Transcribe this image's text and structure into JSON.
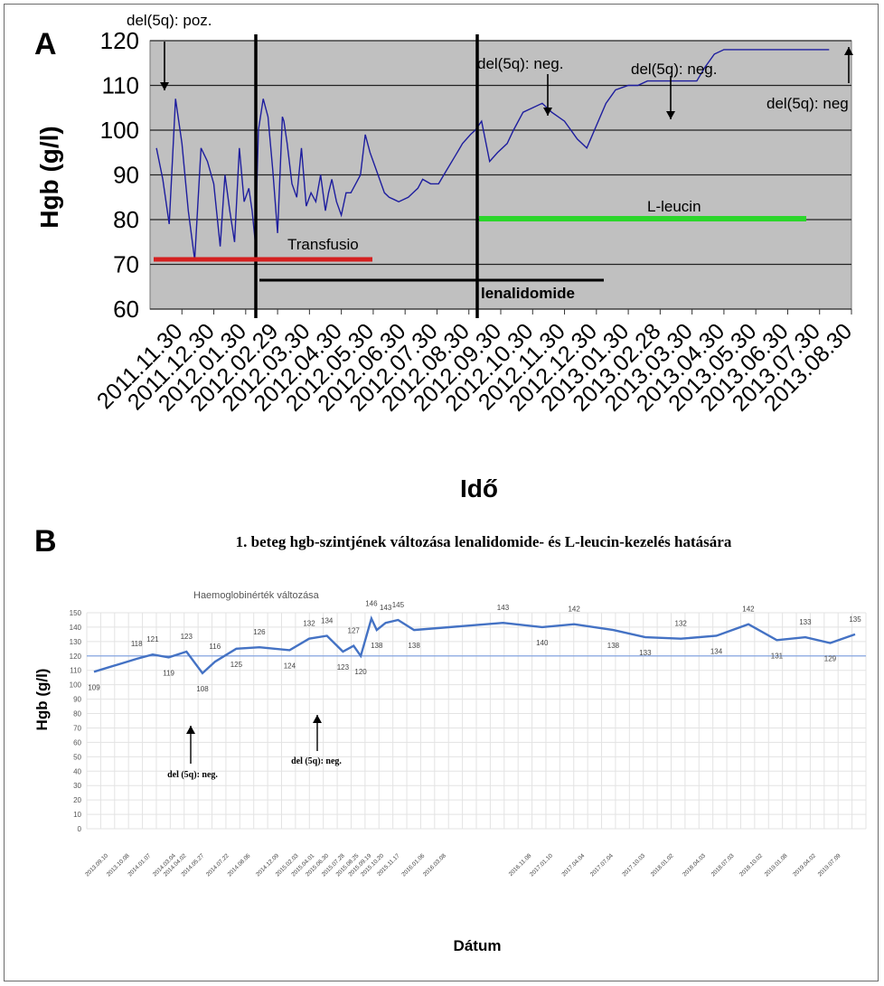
{
  "panels": {
    "a_letter": "A",
    "b_letter": "B"
  },
  "chart_data": [
    {
      "type": "line",
      "ylabel": "Hgb (g/l)",
      "xlabel": "Idő",
      "ylim": [
        60,
        120
      ],
      "yticks": [
        "60",
        "70",
        "80",
        "90",
        "100",
        "110",
        "120"
      ],
      "categories": [
        "2011.11.30",
        "2011.12.30",
        "2012.01.30",
        "2012.02.29",
        "2012.03.30",
        "2012.04.30",
        "2012.05.30",
        "2012.06.30",
        "2012.07.30",
        "2012.08.30",
        "2012.09.30",
        "2012.10.30",
        "2012.11.30",
        "2012.12.30",
        "2013.01.30",
        "2013.02.28",
        "2013.03.30",
        "2013.04.30",
        "2013.05.30",
        "2013.06.30",
        "2013.07.30",
        "2013.08.30"
      ],
      "background": "#c0c0c0",
      "grid": true,
      "series": [
        {
          "color": "#1d1d9e",
          "x": [
            0,
            0.2,
            0.4,
            0.6,
            0.8,
            1.0,
            1.2,
            1.4,
            1.6,
            1.8,
            2.0,
            2.15,
            2.3,
            2.45,
            2.6,
            2.75,
            2.9,
            3.0,
            3.1,
            3.2,
            3.35,
            3.5,
            3.65,
            3.8,
            3.95,
            4.0,
            4.1,
            4.25,
            4.4,
            4.55,
            4.7,
            4.85,
            5.0,
            5.15,
            5.3,
            5.4,
            5.5,
            5.65,
            5.8,
            5.95,
            6.1,
            6.25,
            6.4,
            6.55,
            6.7,
            6.85,
            7.0,
            7.15,
            7.3,
            7.45,
            7.6,
            7.75,
            7.9,
            8.05,
            8.2,
            8.35,
            8.6,
            8.85,
            9.1,
            9.35,
            9.6,
            9.85,
            10.0,
            10.2,
            10.45,
            10.7,
            11.0,
            11.2,
            11.5,
            11.8,
            12.1,
            12.4,
            12.8,
            13.0,
            13.2,
            13.5,
            13.8,
            14.1,
            14.4,
            14.8,
            15.1,
            15.4,
            15.7,
            16.0,
            16.35,
            16.7,
            16.95,
            17.2,
            17.5,
            17.8,
            18.1,
            18.4,
            18.7,
            19.0,
            19.3,
            19.6,
            19.9,
            20.2,
            20.5,
            20.8,
            21.1
          ],
          "values": [
            96,
            89,
            79,
            107,
            97,
            82,
            71,
            96,
            93,
            88,
            74,
            90,
            82,
            75,
            96,
            84,
            87,
            82,
            75,
            100,
            107,
            103,
            91,
            77,
            103,
            102,
            97,
            88,
            85,
            96,
            83,
            86,
            84,
            90,
            82,
            86,
            89,
            84,
            81,
            86,
            86,
            88,
            90,
            99,
            95,
            92,
            89,
            86,
            85,
            84.5,
            84,
            84.5,
            85,
            86,
            87,
            89,
            88,
            88,
            91,
            94,
            97,
            99,
            100,
            102,
            93,
            95,
            97,
            100,
            104,
            105,
            106,
            104,
            102,
            100,
            98,
            96,
            101,
            106,
            109,
            110,
            110,
            111,
            111,
            111,
            111,
            111,
            111,
            114,
            117,
            118,
            118,
            118,
            118,
            118,
            118,
            118,
            118,
            118,
            118,
            118,
            118
          ]
        }
      ],
      "annotations": {
        "del5q_poz": "del(5q): poz.",
        "del5q_neg_1": "del(5q): neg.",
        "del5q_neg_2": "del(5q): neg.",
        "del5q_neg_3": "del(5q): neg",
        "transfusio": "Transfusio",
        "l_leucin": "L-leucin",
        "lenalidomide": "lenalidomide"
      }
    },
    {
      "type": "line",
      "title": "1. beteg hgb-szintjének változása lenalidomide- és L-leucin-kezelés hatására",
      "series_label": "Haemoglobinérték változása",
      "ylabel": "Hgb (g/l)",
      "xlabel": "Dátum",
      "ylim": [
        0,
        150
      ],
      "yticks": [
        "0",
        "10",
        "20",
        "30",
        "40",
        "50",
        "60",
        "70",
        "80",
        "90",
        "100",
        "110",
        "120",
        "130",
        "140",
        "150"
      ],
      "reference_line": 120,
      "grid": true,
      "categories": [
        "2013.09.10",
        "2013.10.08",
        "2014.01.07",
        "2014.03.04",
        "2014.04.02",
        "2014.05.27",
        "2014.07.22",
        "2014.08.06",
        "2014.12.09",
        "2015.02.03",
        "2015.04.01",
        "2015.06.30",
        "2015.07.28",
        "2015.08.25",
        "2015.09.19",
        "2015.10.20",
        "2015.11.17",
        "2016.01.06",
        "2016.03.08",
        "2016.11.08",
        "2017.01.10",
        "2017.04.04",
        "2017.07.04",
        "2017.10.03",
        "2018.01.02",
        "2018.04.03",
        "2018.07.03",
        "2018.10.02",
        "2019.01.08",
        "2019.04.02",
        "2019.07.09"
      ],
      "x": [
        0,
        1.2,
        1.65,
        2.1,
        2.6,
        3.05,
        3.4,
        4.0,
        4.65,
        5.5,
        6.05,
        6.55,
        7.0,
        7.3,
        7.5,
        7.8,
        7.95,
        8.2,
        8.55,
        9.0,
        11.5,
        12.6,
        13.5,
        14.6,
        15.5,
        16.5,
        17.5,
        18.4,
        19.2,
        20.0,
        20.7,
        21.4
      ],
      "values": [
        109,
        118,
        121,
        119,
        123,
        108,
        116,
        125,
        126,
        124,
        132,
        134,
        123,
        127,
        120,
        146,
        138,
        143,
        145,
        138,
        143,
        140,
        142,
        138,
        133,
        132,
        134,
        142,
        131,
        133,
        129,
        135
      ],
      "data_labels": [
        "109",
        "118",
        "121",
        "119",
        "123",
        "108",
        "116",
        "125",
        "126",
        "124",
        "132",
        "134",
        "123",
        "127",
        "120",
        "146",
        "138",
        "143",
        "145",
        "138",
        "143",
        "140",
        "142",
        "138",
        "133",
        "132",
        "134",
        "142",
        "131",
        "133",
        "129",
        "135"
      ],
      "line_color": "#4472c4",
      "annotations": {
        "del5q_neg_1": "del (5q): neg.",
        "del5q_neg_2": "del (5q): neg."
      }
    }
  ]
}
